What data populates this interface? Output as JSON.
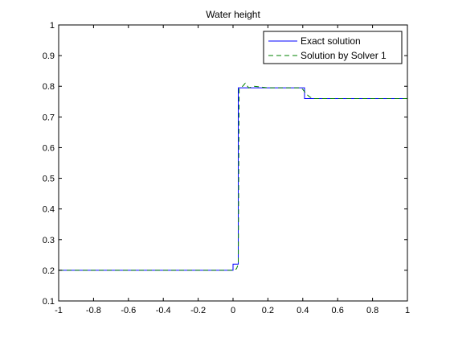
{
  "chart_data": {
    "type": "line",
    "title": "Water height",
    "xlabel": "",
    "ylabel": "",
    "xlim": [
      -1,
      1
    ],
    "ylim": [
      0.1,
      1
    ],
    "xticks": [
      -1,
      -0.8,
      -0.6,
      -0.4,
      -0.2,
      0,
      0.2,
      0.4,
      0.6,
      0.8,
      1
    ],
    "xtick_labels": [
      "-1",
      "-0.8",
      "-0.6",
      "-0.4",
      "-0.2",
      "0",
      "0.2",
      "0.4",
      "0.6",
      "0.8",
      "1"
    ],
    "yticks": [
      0.1,
      0.2,
      0.3,
      0.4,
      0.5,
      0.6,
      0.7,
      0.8,
      0.9,
      1
    ],
    "ytick_labels": [
      "0.1",
      "0.2",
      "0.3",
      "0.4",
      "0.5",
      "0.6",
      "0.7",
      "0.8",
      "0.9",
      "1"
    ],
    "grid": false,
    "legend_position": "top-right",
    "series": [
      {
        "name": "Exact solution",
        "color": "#0000ff",
        "style": "solid",
        "x": [
          -1,
          0,
          0,
          0.03,
          0.03,
          0.41,
          0.41,
          1
        ],
        "y": [
          0.2,
          0.2,
          0.22,
          0.22,
          0.795,
          0.795,
          0.76,
          0.76
        ]
      },
      {
        "name": "Solution by Solver 1",
        "color": "#008000",
        "style": "dashed",
        "x": [
          -1,
          0.0,
          0.02,
          0.03,
          0.035,
          0.045,
          0.055,
          0.07,
          0.09,
          0.12,
          0.2,
          0.38,
          0.4,
          0.42,
          0.44,
          0.46,
          1
        ],
        "y": [
          0.2,
          0.2,
          0.205,
          0.22,
          0.79,
          0.795,
          0.8,
          0.81,
          0.795,
          0.8,
          0.795,
          0.795,
          0.79,
          0.775,
          0.765,
          0.76,
          0.76
        ]
      }
    ]
  }
}
